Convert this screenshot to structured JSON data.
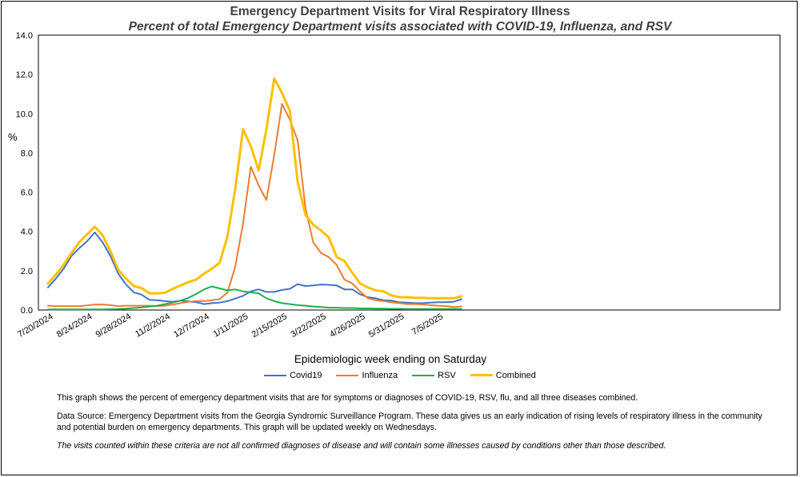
{
  "chart_data": {
    "type": "line",
    "title": "Emergency Department Visits for Viral Respiratory Illness",
    "subtitle": "Percent of total Emergency Department visits associated with COVID-19, Influenza, and RSV",
    "xlabel": "Epidemiologic week ending on Saturday",
    "ylabel": "%",
    "ylim": [
      0,
      14
    ],
    "yticks": [
      "0.0",
      "2.0",
      "4.0",
      "6.0",
      "8.0",
      "10.0",
      "12.0",
      "14.0"
    ],
    "xtick_labels": [
      "7/20/2024",
      "8/24/2024",
      "9/28/2024",
      "11/2/2024",
      "12/7/2024",
      "1/11/2025",
      "2/15/2025",
      "3/22/2025",
      "4/26/2025",
      "5/31/2025",
      "7/5/2025"
    ],
    "legend_position": "bottom",
    "series": [
      {
        "name": "Covid19",
        "color": "#4472C4",
        "values": [
          1.15,
          1.6,
          2.1,
          2.75,
          3.15,
          3.5,
          3.95,
          3.45,
          2.75,
          1.85,
          1.3,
          0.9,
          0.78,
          0.52,
          0.5,
          0.45,
          0.42,
          0.48,
          0.44,
          0.4,
          0.3,
          0.35,
          0.38,
          0.45,
          0.58,
          0.72,
          0.95,
          1.05,
          0.92,
          0.92,
          1.02,
          1.08,
          1.32,
          1.22,
          1.25,
          1.3,
          1.28,
          1.25,
          1.05,
          1.05,
          0.8,
          0.65,
          0.6,
          0.5,
          0.48,
          0.4,
          0.38,
          0.35,
          0.35,
          0.38,
          0.4,
          0.4,
          0.42,
          0.55
        ]
      },
      {
        "name": "Influenza",
        "color": "#ED7D31",
        "values": [
          0.22,
          0.2,
          0.2,
          0.2,
          0.2,
          0.23,
          0.28,
          0.28,
          0.25,
          0.2,
          0.22,
          0.22,
          0.22,
          0.22,
          0.2,
          0.22,
          0.28,
          0.35,
          0.42,
          0.45,
          0.45,
          0.5,
          0.55,
          0.9,
          2.2,
          4.4,
          7.3,
          6.35,
          5.6,
          7.9,
          10.5,
          9.7,
          8.65,
          5.2,
          3.45,
          2.9,
          2.7,
          2.3,
          1.55,
          1.35,
          0.95,
          0.6,
          0.5,
          0.45,
          0.4,
          0.35,
          0.3,
          0.3,
          0.28,
          0.25,
          0.22,
          0.2,
          0.15,
          0.18
        ]
      },
      {
        "name": "RSV",
        "color": "#1FAE4B",
        "values": [
          0.03,
          0.03,
          0.03,
          0.03,
          0.03,
          0.03,
          0.03,
          0.03,
          0.04,
          0.05,
          0.07,
          0.1,
          0.13,
          0.18,
          0.22,
          0.3,
          0.38,
          0.48,
          0.62,
          0.82,
          1.05,
          1.2,
          1.1,
          1.0,
          1.05,
          0.95,
          0.9,
          0.85,
          0.6,
          0.45,
          0.35,
          0.3,
          0.25,
          0.22,
          0.18,
          0.15,
          0.12,
          0.12,
          0.1,
          0.1,
          0.08,
          0.08,
          0.07,
          0.07,
          0.06,
          0.06,
          0.05,
          0.05,
          0.05,
          0.05,
          0.05,
          0.05,
          0.05,
          0.05
        ]
      },
      {
        "name": "Combined",
        "color": "#FFC000",
        "values": [
          1.35,
          1.8,
          2.3,
          2.9,
          3.45,
          3.85,
          4.25,
          3.8,
          3.0,
          2.05,
          1.6,
          1.22,
          1.12,
          0.85,
          0.85,
          0.88,
          1.08,
          1.25,
          1.42,
          1.55,
          1.85,
          2.1,
          2.4,
          3.75,
          6.15,
          9.2,
          8.35,
          7.1,
          9.2,
          11.8,
          11.05,
          10.15,
          6.55,
          4.85,
          4.35,
          4.05,
          3.7,
          2.7,
          2.5,
          1.9,
          1.35,
          1.15,
          1.0,
          0.95,
          0.75,
          0.65,
          0.65,
          0.62,
          0.62,
          0.6,
          0.6,
          0.6,
          0.6,
          0.7
        ]
      }
    ]
  },
  "notes": {
    "line1": "This graph shows the percent of emergency department visits that are for symptoms or diagnoses of COVID-19, RSV, flu, and all three diseases combined.",
    "line2": "Data Source: Emergency Department visits from the Georgia Syndromic Surveillance Program. These data gives us an early indication of rising levels of respiratory illness in the community and potential burden on emergency departments. This graph will be updated weekly on Wednesdays.",
    "line3": "The visits counted within these criteria are not all confirmed diagnoses of disease and will contain some illnesses caused by conditions other than those described."
  }
}
